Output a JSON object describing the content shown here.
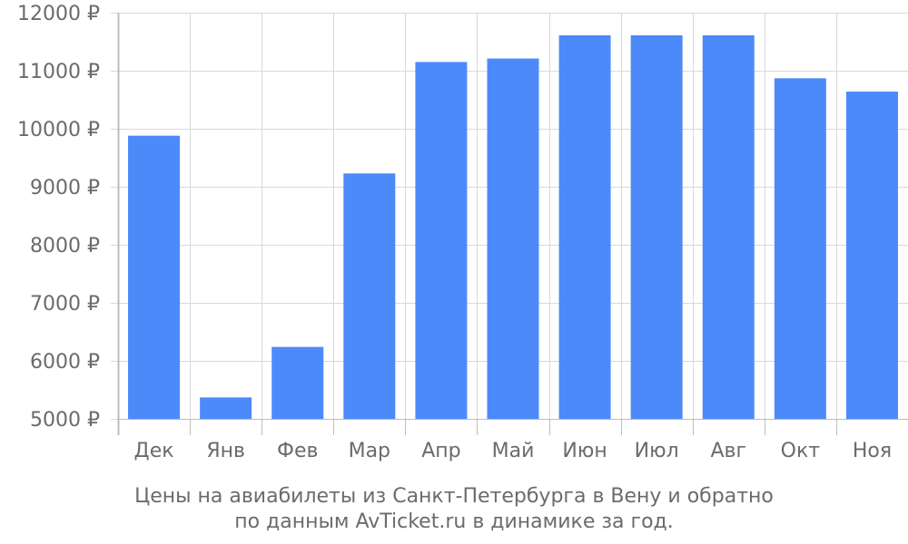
{
  "chart_data": {
    "type": "bar",
    "categories": [
      "Дек",
      "Янв",
      "Фев",
      "Мар",
      "Апр",
      "Май",
      "Июн",
      "Июл",
      "Авг",
      "Окт",
      "Ноя"
    ],
    "values": [
      9880,
      5370,
      6240,
      9230,
      11150,
      11210,
      11610,
      11610,
      11610,
      10870,
      10640
    ],
    "ylim": [
      5000,
      12000
    ],
    "yticks": [
      5000,
      6000,
      7000,
      8000,
      9000,
      10000,
      11000,
      12000
    ],
    "ytick_labels": [
      "5000 ₽",
      "6000 ₽",
      "7000 ₽",
      "8000 ₽",
      "9000 ₽",
      "10000 ₽",
      "11000 ₽",
      "12000 ₽"
    ],
    "grid": true,
    "bar_color": "#4d8af9",
    "grid_color": "#d9d9d9",
    "axis_color": "#bdbdbd",
    "caption_lines": [
      "Цены на авиабилеты из Санкт-Петербурга в Вену и обратно",
      "по данным AvTicket.ru в динамике за год."
    ]
  }
}
